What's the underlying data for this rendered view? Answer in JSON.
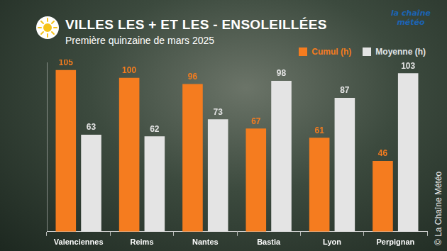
{
  "chart_data": {
    "type": "bar",
    "title": "VILLES LES + ET LES - ENSOLEILLÉES",
    "subtitle": "Première quinzaine de mars 2025",
    "categories": [
      "Valenciennes",
      "Reims",
      "Nantes",
      "Bastia",
      "Lyon",
      "Perpignan"
    ],
    "series": [
      {
        "name": "Cumul (h)",
        "color": "#f57c1f",
        "values": [
          105,
          100,
          96,
          67,
          61,
          46
        ]
      },
      {
        "name": "Moyenne (h)",
        "color": "#e4e4e4",
        "values": [
          63,
          62,
          73,
          98,
          87,
          103
        ]
      }
    ],
    "ylim": [
      0,
      110
    ],
    "yticks": [],
    "grid": false,
    "legend": "top-right",
    "data_labels": true,
    "tick_labels": "x",
    "annotations": [
      "la chaîne météo",
      "© La Chaîne Météo"
    ]
  }
}
